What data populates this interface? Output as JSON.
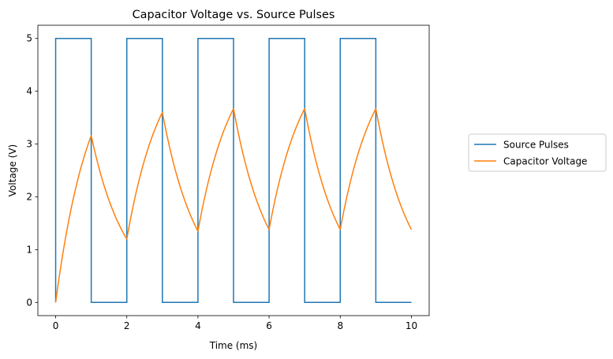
{
  "chart_data": {
    "type": "line",
    "title": "Capacitor Voltage vs. Source Pulses",
    "xlabel": "Time (ms)",
    "ylabel": "Voltage (V)",
    "xlim": [
      -0.5,
      10.5
    ],
    "ylim": [
      -0.25,
      5.25
    ],
    "xticks": [
      0,
      2,
      4,
      6,
      8,
      10
    ],
    "yticks": [
      0,
      1,
      2,
      3,
      4,
      5
    ],
    "grid": false,
    "legend_position": "outside-right",
    "series": [
      {
        "name": "Source Pulses",
        "color": "#1f77b4",
        "x": [
          0,
          0,
          1,
          1,
          2,
          2,
          3,
          3,
          4,
          4,
          5,
          5,
          6,
          6,
          7,
          7,
          8,
          8,
          9,
          9,
          10
        ],
        "y": [
          0,
          5,
          5,
          0,
          0,
          5,
          5,
          0,
          0,
          5,
          5,
          0,
          0,
          5,
          5,
          0,
          0,
          5,
          5,
          0,
          0
        ]
      },
      {
        "name": "Capacitor Voltage",
        "color": "#ff7f0e",
        "tau_ms": 0.97,
        "peaks": [
          3.16,
          3.6,
          3.67,
          3.67,
          3.67
        ],
        "troughs": [
          1.2,
          1.35,
          1.38,
          1.38,
          1.38
        ]
      }
    ]
  }
}
